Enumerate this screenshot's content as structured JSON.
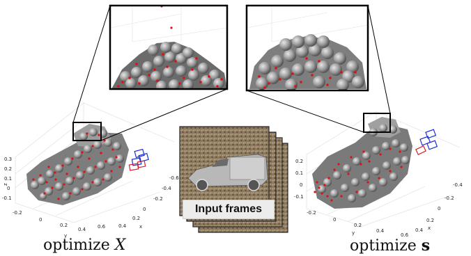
{
  "figure": {
    "captions": {
      "left_prefix": "optimize ",
      "left_var": "X",
      "right_prefix": "optimize ",
      "right_var": "s"
    },
    "center_label": "Input frames",
    "left_plot": {
      "z_label": "z",
      "y_label": "y",
      "x_label": "x",
      "z_ticks": [
        "0.3",
        "0.2",
        "0.1",
        "0",
        "-0.1"
      ],
      "y_ticks": [
        "-0.2",
        "0",
        "0.2",
        "0.4",
        "0.6"
      ],
      "x_ticks": [
        "-0.6",
        "-0.4",
        "-0.2",
        "0",
        "0.2",
        "0.4"
      ]
    },
    "right_plot": {
      "y_label": "y",
      "x_label": "x",
      "z_ticks": [
        "0.2",
        "0.1",
        "0",
        "-0.1"
      ],
      "y_ticks": [
        "-0.2",
        "0",
        "0.2",
        "0.4",
        "0.6"
      ],
      "x_ticks": [
        "-0.4",
        "-0.2",
        "0",
        "0.2",
        "0.4"
      ]
    },
    "colors": {
      "gray_point": "#8c8c8c",
      "error_point": "#e01010",
      "camera_blue": "#1b2fd6",
      "camera_red": "#d81f2a",
      "frame_texture": "#8d7a5e"
    }
  }
}
